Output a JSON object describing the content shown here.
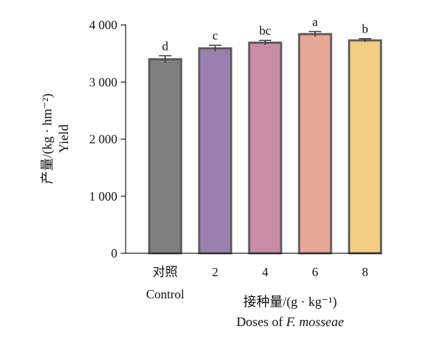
{
  "chart_data": {
    "type": "bar",
    "categories": [
      "对照",
      "2",
      "4",
      "6",
      "8"
    ],
    "category_sublabels": [
      "Control",
      "",
      "",
      "",
      ""
    ],
    "values": [
      3400,
      3590,
      3690,
      3840,
      3730
    ],
    "errors": [
      60,
      55,
      40,
      45,
      30
    ],
    "significance": [
      "d",
      "c",
      "bc",
      "a",
      "b"
    ],
    "bar_colors": [
      "#7f7f7f",
      "#9a80ae",
      "#c98ca8",
      "#e8a797",
      "#f3cd84"
    ],
    "bar_edge_color": "#5a5a5a",
    "ylim": [
      0,
      4000
    ],
    "yticks": [
      0,
      1000,
      2000,
      3000,
      4000
    ],
    "ytick_labels": [
      "0",
      "1 000",
      "2 000",
      "3 000",
      "4 000"
    ],
    "ylabel_cn": "产量/(kg · hm⁻²)",
    "ylabel_en": "Yield",
    "xlabel_cn": "接种量/(g · kg⁻¹)",
    "xlabel_en_prefix": "Doses of ",
    "xlabel_en_species": "F. mosseae",
    "grid": false
  }
}
